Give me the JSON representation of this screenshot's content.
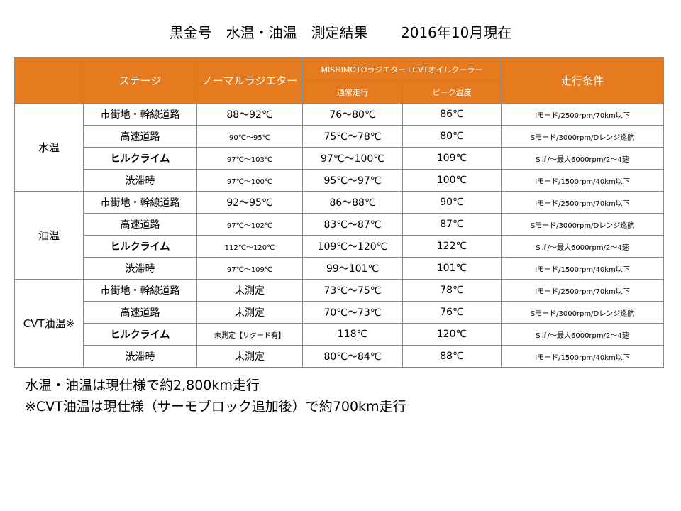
{
  "title": "黒金号　水温・油温　測定結果　　 2016年10月現在",
  "headers": {
    "stage": "ステージ",
    "normal": "ノーマルラジエター",
    "mishimoto": "MISHIMOTOラジエター+CVTオイルクーラー",
    "normal_run": "通常走行",
    "peak": "ピーク温度",
    "condition": "走行条件"
  },
  "groups": [
    {
      "name": "水温",
      "rows": [
        {
          "stage": "市街地・幹線道路",
          "normal": "88～92℃",
          "run": "76～80℃",
          "peak": "86℃",
          "cond": "Iモード/2500rpm/70km以下"
        },
        {
          "stage": "高速道路",
          "normal": "90℃～95℃",
          "run": "75℃～78℃",
          "peak": "80℃",
          "cond": "Sモード/3000rpm/Dレンジ巡航"
        },
        {
          "stage": "ヒルクライム",
          "normal": "97℃～103℃",
          "run": "97℃～100℃",
          "peak": "109℃",
          "cond": "S＃/～最大6000rpm/2～4速"
        },
        {
          "stage": "渋滞時",
          "normal": "97℃～100℃",
          "run": "95℃～97℃",
          "peak": "100℃",
          "cond": "Iモード/1500rpm/40km以下"
        }
      ]
    },
    {
      "name": "油温",
      "rows": [
        {
          "stage": "市街地・幹線道路",
          "normal": "92～95℃",
          "run": "86～88℃",
          "peak": "90℃",
          "cond": "Iモード/2500rpm/70km以下"
        },
        {
          "stage": "高速道路",
          "normal": "97℃～102℃",
          "run": "83℃～87℃",
          "peak": "87℃",
          "cond": "Sモード/3000rpm/Dレンジ巡航"
        },
        {
          "stage": "ヒルクライム",
          "normal": "112℃～120℃",
          "run": "109℃～120℃",
          "peak": "122℃",
          "cond": "S＃/～最大6000rpm/2～4速"
        },
        {
          "stage": "渋滞時",
          "normal": "97℃～109℃",
          "run": "99～101℃",
          "peak": "101℃",
          "cond": "Iモード/1500rpm/40km以下"
        }
      ]
    },
    {
      "name": "CVT油温※",
      "rows": [
        {
          "stage": "市街地・幹線道路",
          "normal": "未測定",
          "run": "73℃～75℃",
          "peak": "78℃",
          "cond": "Iモード/2500rpm/70km以下"
        },
        {
          "stage": "高速道路",
          "normal": "未測定",
          "run": "70℃～73℃",
          "peak": "76℃",
          "cond": "Sモード/3000rpm/Dレンジ巡航"
        },
        {
          "stage": "ヒルクライム",
          "normal": "未測定【リタード有】",
          "run": "118℃",
          "peak": "120℃",
          "cond": "S＃/～最大6000rpm/2～4速"
        },
        {
          "stage": "渋滞時",
          "normal": "未測定",
          "run": "80℃～84℃",
          "peak": "88℃",
          "cond": "Iモード/1500rpm/40km以下"
        }
      ]
    }
  ],
  "notes": [
    "水温・油温は現仕様で約2,800km走行",
    "※CVT油温は現仕様（サーモブロック追加後）で約700km走行"
  ]
}
